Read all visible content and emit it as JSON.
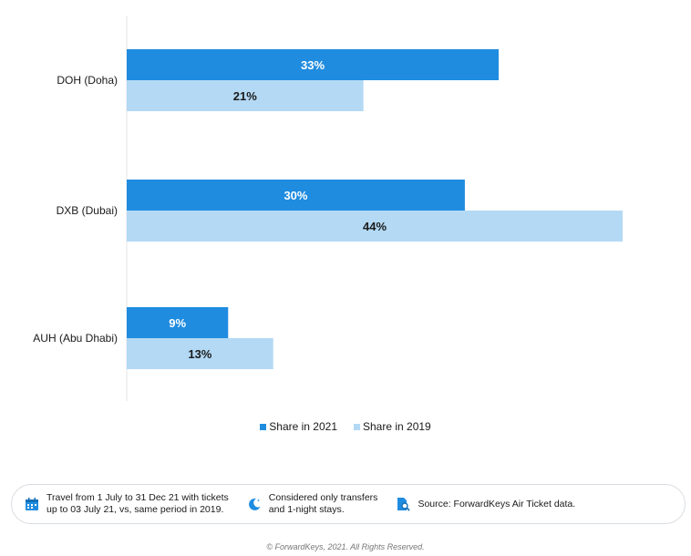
{
  "chart_data": {
    "type": "bar",
    "orientation": "horizontal",
    "categories": [
      "DOH (Doha)",
      "DXB (Dubai)",
      "AUH (Abu Dhabi)"
    ],
    "series": [
      {
        "name": "Share in 2021",
        "values": [
          33,
          30,
          9
        ],
        "labels": [
          "33%",
          "30%",
          "9%"
        ],
        "color": "#1f8ce0",
        "label_color": "#ffffff"
      },
      {
        "name": "Share in 2019",
        "values": [
          21,
          44,
          13
        ],
        "labels": [
          "21%",
          "44%",
          "13%"
        ],
        "color": "#b3d9f5",
        "label_color": "#1a1a1a"
      }
    ],
    "xlim": [
      0,
      44
    ],
    "grid": false,
    "legend_position": "bottom"
  },
  "notes": [
    {
      "icon": "calendar-icon",
      "text": "Travel from 1 July to 31 Dec 21 with tickets\nup to 03 July 21, vs, same period in 2019."
    },
    {
      "icon": "moon-icon",
      "text": "Considered only transfers\nand 1-night stays."
    },
    {
      "icon": "document-search-icon",
      "text": "Source: ForwardKeys Air Ticket data."
    }
  ],
  "footer": "© ForwardKeys, 2021. All Rights Reserved."
}
